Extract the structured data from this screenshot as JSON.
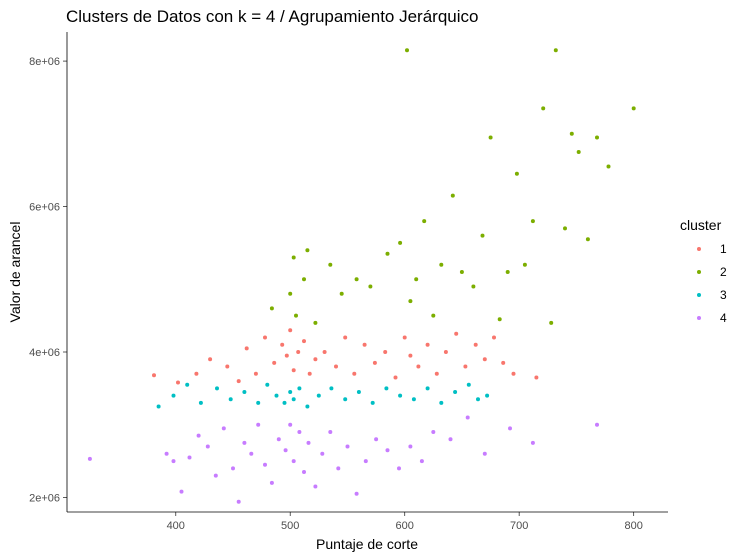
{
  "chart_data": {
    "type": "scatter",
    "title": "Clusters de Datos con k = 4 / Agrupamiento Jerárquico",
    "xlabel": "Puntaje de corte",
    "ylabel": "Valor de arancel",
    "xlim": [
      305,
      830
    ],
    "ylim": [
      1800000,
      8400000
    ],
    "x_ticks": [
      {
        "value": 400,
        "label": "400"
      },
      {
        "value": 500,
        "label": "500"
      },
      {
        "value": 600,
        "label": "600"
      },
      {
        "value": 700,
        "label": "700"
      },
      {
        "value": 800,
        "label": "800"
      }
    ],
    "y_ticks": [
      {
        "value": 2000000,
        "label": "2e+06"
      },
      {
        "value": 4000000,
        "label": "4e+06"
      },
      {
        "value": 6000000,
        "label": "6e+06"
      },
      {
        "value": 8000000,
        "label": "8e+06"
      }
    ],
    "grid": false,
    "legend": {
      "title": "cluster",
      "position": "right"
    },
    "series": [
      {
        "name": "1",
        "color": "#F8766D",
        "points": [
          [
            381,
            3680000
          ],
          [
            402,
            3580000
          ],
          [
            418,
            3700000
          ],
          [
            430,
            3900000
          ],
          [
            445,
            3800000
          ],
          [
            455,
            3600000
          ],
          [
            462,
            4050000
          ],
          [
            470,
            3700000
          ],
          [
            478,
            4200000
          ],
          [
            486,
            3850000
          ],
          [
            493,
            4100000
          ],
          [
            497,
            3950000
          ],
          [
            500,
            4300000
          ],
          [
            503,
            3750000
          ],
          [
            507,
            4000000
          ],
          [
            512,
            4150000
          ],
          [
            517,
            3700000
          ],
          [
            522,
            3900000
          ],
          [
            530,
            4000000
          ],
          [
            540,
            3800000
          ],
          [
            548,
            4200000
          ],
          [
            556,
            3700000
          ],
          [
            565,
            4100000
          ],
          [
            574,
            3850000
          ],
          [
            583,
            4000000
          ],
          [
            592,
            3650000
          ],
          [
            600,
            4200000
          ],
          [
            605,
            3950000
          ],
          [
            612,
            3800000
          ],
          [
            620,
            4100000
          ],
          [
            628,
            3700000
          ],
          [
            636,
            4000000
          ],
          [
            645,
            4250000
          ],
          [
            653,
            3800000
          ],
          [
            662,
            4100000
          ],
          [
            670,
            3900000
          ],
          [
            678,
            4200000
          ],
          [
            686,
            3850000
          ],
          [
            695,
            3700000
          ],
          [
            715,
            3650000
          ]
        ]
      },
      {
        "name": "2",
        "color": "#7CAE00",
        "points": [
          [
            484,
            4600000
          ],
          [
            500,
            4800000
          ],
          [
            503,
            5300000
          ],
          [
            505,
            4500000
          ],
          [
            512,
            5000000
          ],
          [
            515,
            5400000
          ],
          [
            522,
            4400000
          ],
          [
            535,
            5200000
          ],
          [
            545,
            4800000
          ],
          [
            558,
            5000000
          ],
          [
            570,
            4900000
          ],
          [
            585,
            5350000
          ],
          [
            596,
            5500000
          ],
          [
            602,
            8150000
          ],
          [
            605,
            4700000
          ],
          [
            610,
            5000000
          ],
          [
            617,
            5800000
          ],
          [
            625,
            4500000
          ],
          [
            632,
            5200000
          ],
          [
            642,
            6150000
          ],
          [
            650,
            5100000
          ],
          [
            660,
            4900000
          ],
          [
            668,
            5600000
          ],
          [
            675,
            6950000
          ],
          [
            683,
            4450000
          ],
          [
            690,
            5100000
          ],
          [
            698,
            6450000
          ],
          [
            705,
            5200000
          ],
          [
            712,
            5800000
          ],
          [
            721,
            7350000
          ],
          [
            728,
            4400000
          ],
          [
            732,
            8150000
          ],
          [
            740,
            5700000
          ],
          [
            746,
            7000000
          ],
          [
            752,
            6750000
          ],
          [
            760,
            5550000
          ],
          [
            768,
            6950000
          ],
          [
            778,
            6550000
          ],
          [
            800,
            7350000
          ]
        ]
      },
      {
        "name": "3",
        "color": "#00BFC4",
        "points": [
          [
            385,
            3250000
          ],
          [
            398,
            3400000
          ],
          [
            410,
            3550000
          ],
          [
            422,
            3300000
          ],
          [
            436,
            3500000
          ],
          [
            448,
            3350000
          ],
          [
            460,
            3450000
          ],
          [
            472,
            3300000
          ],
          [
            480,
            3550000
          ],
          [
            488,
            3400000
          ],
          [
            495,
            3300000
          ],
          [
            500,
            3450000
          ],
          [
            503,
            3350000
          ],
          [
            508,
            3500000
          ],
          [
            515,
            3250000
          ],
          [
            525,
            3400000
          ],
          [
            536,
            3500000
          ],
          [
            548,
            3350000
          ],
          [
            560,
            3450000
          ],
          [
            572,
            3300000
          ],
          [
            584,
            3500000
          ],
          [
            596,
            3400000
          ],
          [
            608,
            3350000
          ],
          [
            620,
            3500000
          ],
          [
            632,
            3300000
          ],
          [
            644,
            3450000
          ],
          [
            656,
            3550000
          ],
          [
            664,
            3350000
          ],
          [
            672,
            3400000
          ]
        ]
      },
      {
        "name": "4",
        "color": "#C77CFF",
        "points": [
          [
            325,
            2530000
          ],
          [
            392,
            2600000
          ],
          [
            398,
            2500000
          ],
          [
            405,
            2080000
          ],
          [
            412,
            2550000
          ],
          [
            420,
            2850000
          ],
          [
            428,
            2700000
          ],
          [
            435,
            2300000
          ],
          [
            442,
            2950000
          ],
          [
            450,
            2400000
          ],
          [
            455,
            1940000
          ],
          [
            460,
            2750000
          ],
          [
            466,
            2600000
          ],
          [
            472,
            3000000
          ],
          [
            478,
            2450000
          ],
          [
            484,
            2200000
          ],
          [
            490,
            2800000
          ],
          [
            496,
            2650000
          ],
          [
            500,
            3000000
          ],
          [
            503,
            2500000
          ],
          [
            508,
            2900000
          ],
          [
            512,
            2350000
          ],
          [
            516,
            2750000
          ],
          [
            522,
            2150000
          ],
          [
            528,
            2600000
          ],
          [
            535,
            2900000
          ],
          [
            542,
            2400000
          ],
          [
            550,
            2700000
          ],
          [
            558,
            2050000
          ],
          [
            566,
            2500000
          ],
          [
            575,
            2800000
          ],
          [
            585,
            2650000
          ],
          [
            595,
            2400000
          ],
          [
            605,
            2700000
          ],
          [
            615,
            2500000
          ],
          [
            625,
            2900000
          ],
          [
            640,
            2800000
          ],
          [
            655,
            3100000
          ],
          [
            670,
            2600000
          ],
          [
            692,
            2950000
          ],
          [
            712,
            2750000
          ],
          [
            768,
            3000000
          ]
        ]
      }
    ]
  }
}
